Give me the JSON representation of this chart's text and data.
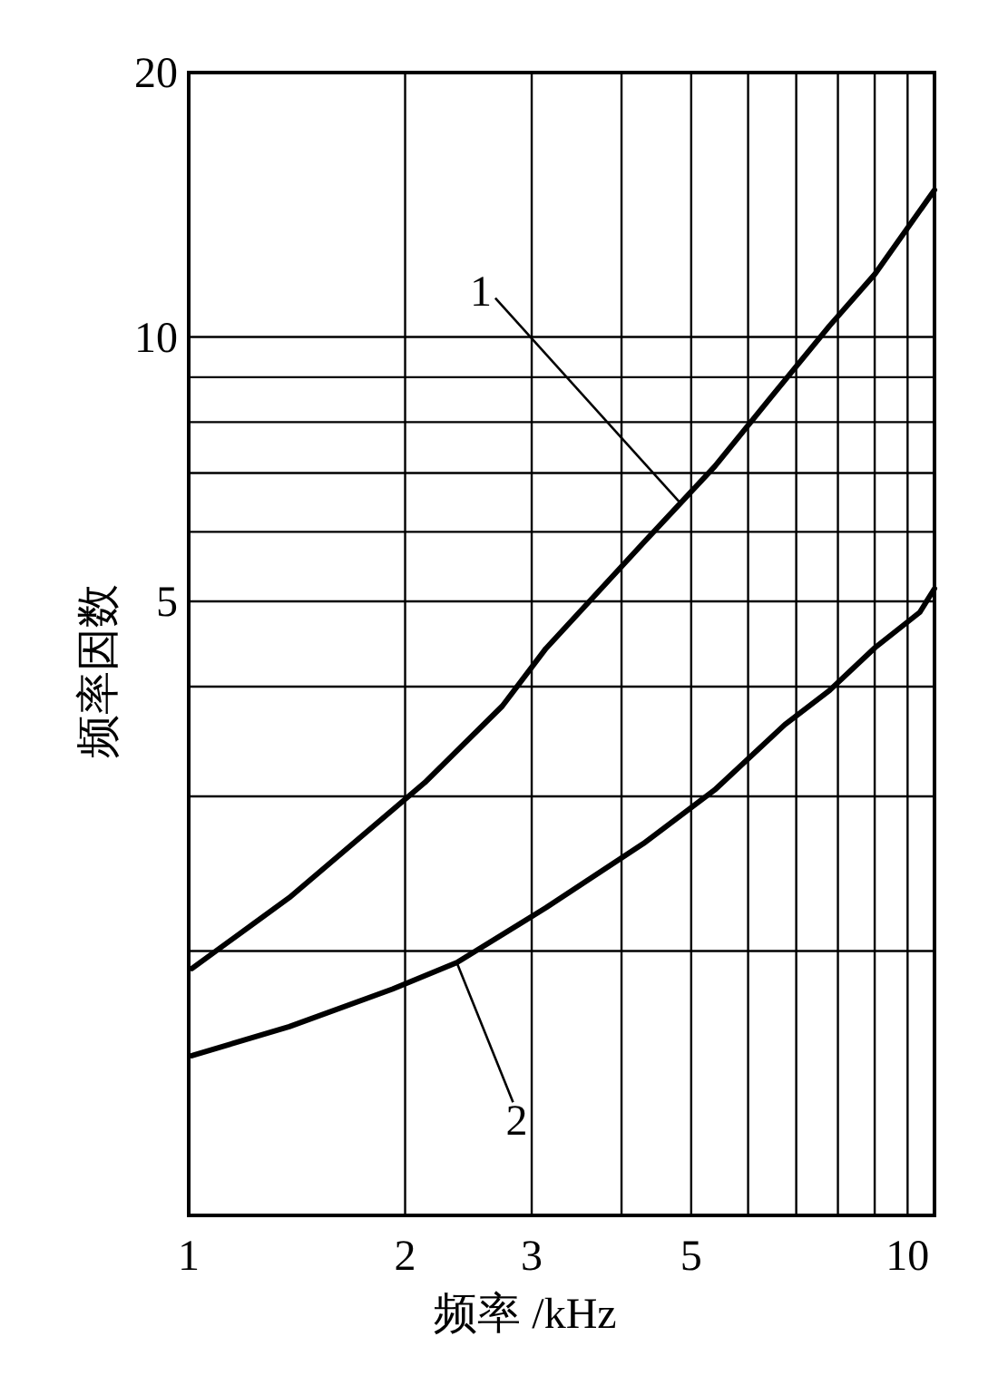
{
  "chart_data": {
    "type": "line",
    "xlabel": "频率 /kHz",
    "ylabel": "频率因数",
    "log": "xy",
    "grid": true,
    "xlim": [
      1,
      10.9
    ],
    "ylim": [
      1,
      20
    ],
    "xticks": [
      1,
      2,
      3,
      {
        "value": 4,
        "label": null
      },
      5,
      {
        "value": 6,
        "label": null
      },
      {
        "value": 7,
        "label": null
      },
      {
        "value": 8,
        "label": null
      },
      {
        "value": 9,
        "label": null
      },
      10
    ],
    "yticks": [
      {
        "value": 2,
        "label": null
      },
      {
        "value": 3,
        "label": null
      },
      {
        "value": 4,
        "label": null
      },
      5,
      {
        "value": 6,
        "label": null
      },
      {
        "value": 7,
        "label": null
      },
      {
        "value": 8,
        "label": null
      },
      {
        "value": 9,
        "label": null
      },
      10,
      20
    ],
    "series": [
      {
        "color": "#000000",
        "x": [
          1.01,
          1.38,
          2.13,
          2.73,
          3.14,
          4.29,
          5.39,
          6.48,
          7.79,
          9.01,
          10.9
        ],
        "values": [
          1.91,
          2.3,
          3.11,
          3.8,
          4.42,
          5.83,
          7.12,
          8.57,
          10.3,
          11.8,
          14.7
        ]
      },
      {
        "color": "#000000",
        "x": [
          1.01,
          1.38,
          1.92,
          2.36,
          3.14,
          4.29,
          5.39,
          6.75,
          7.79,
          9.01,
          10.4,
          10.9
        ],
        "values": [
          1.52,
          1.64,
          1.81,
          1.94,
          2.24,
          2.65,
          3.05,
          3.62,
          3.96,
          4.43,
          4.86,
          5.17
        ]
      }
    ],
    "annotations": [
      {
        "text": "1",
        "x": 4.83,
        "y": 6.47
      },
      {
        "text": "2",
        "x": 2.36,
        "y": 1.94
      }
    ]
  }
}
